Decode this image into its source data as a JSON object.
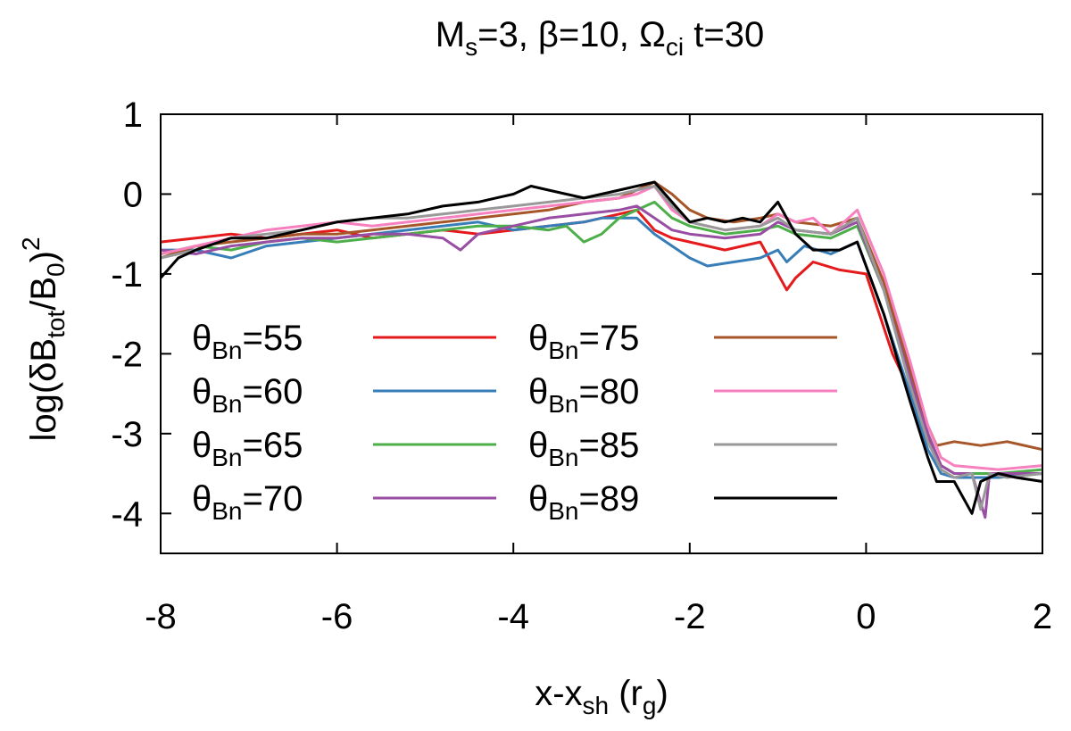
{
  "chart_data": {
    "type": "line",
    "title": {
      "pre1": "M",
      "sub1": "s",
      "post1": "=3,  β=10, Ω",
      "sub2": "ci",
      "post2": " t=30"
    },
    "xlabel": {
      "pre": "x-x",
      "sub1": "sh",
      "mid": " (r",
      "sub2": "g",
      "post": ")"
    },
    "ylabel": {
      "pre": "log(δB",
      "sub1": "tot",
      "mid": "/B",
      "sub2": "0",
      "post": ")",
      "sup": "2"
    },
    "xlim": [
      -8,
      2
    ],
    "ylim": [
      -4.5,
      1
    ],
    "xticks": [
      "-8",
      "-6",
      "-4",
      "-2",
      "0",
      "2"
    ],
    "yticks": [
      "1",
      "0",
      "-1",
      "-2",
      "-3",
      "-4"
    ],
    "grid": false,
    "legend_placement": "lower-left, two columns",
    "series": [
      {
        "label": {
          "pre": "θ",
          "sub": "Bn",
          "post": "=55"
        },
        "color": "#e41a1c",
        "points": [
          [
            -8,
            -0.6
          ],
          [
            -7.6,
            -0.55
          ],
          [
            -7.2,
            -0.5
          ],
          [
            -6.8,
            -0.55
          ],
          [
            -6.4,
            -0.5
          ],
          [
            -6,
            -0.45
          ],
          [
            -5.6,
            -0.55
          ],
          [
            -5.2,
            -0.5
          ],
          [
            -4.8,
            -0.45
          ],
          [
            -4.4,
            -0.5
          ],
          [
            -4,
            -0.45
          ],
          [
            -3.6,
            -0.4
          ],
          [
            -3.2,
            -0.35
          ],
          [
            -3,
            -0.3
          ],
          [
            -2.8,
            -0.25
          ],
          [
            -2.6,
            -0.2
          ],
          [
            -2.4,
            -0.45
          ],
          [
            -2.2,
            -0.55
          ],
          [
            -2,
            -0.6
          ],
          [
            -1.6,
            -0.7
          ],
          [
            -1.2,
            -0.6
          ],
          [
            -1,
            -1.0
          ],
          [
            -0.9,
            -1.2
          ],
          [
            -0.8,
            -1.05
          ],
          [
            -0.6,
            -0.85
          ],
          [
            -0.3,
            -0.95
          ],
          [
            0,
            -1.0
          ],
          [
            0.3,
            -2.0
          ],
          [
            0.6,
            -2.7
          ],
          [
            0.75,
            -3.2
          ],
          [
            0.85,
            -3.4
          ],
          [
            1.0,
            -3.5
          ],
          [
            1.5,
            -3.5
          ],
          [
            2,
            -3.5
          ]
        ]
      },
      {
        "label": {
          "pre": "θ",
          "sub": "Bn",
          "post": "=60"
        },
        "color": "#377eb8",
        "points": [
          [
            -8,
            -0.7
          ],
          [
            -7.6,
            -0.7
          ],
          [
            -7.2,
            -0.8
          ],
          [
            -6.8,
            -0.65
          ],
          [
            -6.4,
            -0.6
          ],
          [
            -6,
            -0.55
          ],
          [
            -5.6,
            -0.5
          ],
          [
            -5.2,
            -0.45
          ],
          [
            -4.8,
            -0.4
          ],
          [
            -4.4,
            -0.35
          ],
          [
            -4,
            -0.45
          ],
          [
            -3.6,
            -0.4
          ],
          [
            -3.2,
            -0.35
          ],
          [
            -3,
            -0.3
          ],
          [
            -2.6,
            -0.3
          ],
          [
            -2.4,
            -0.5
          ],
          [
            -2.2,
            -0.65
          ],
          [
            -2,
            -0.8
          ],
          [
            -1.8,
            -0.9
          ],
          [
            -1.5,
            -0.85
          ],
          [
            -1.2,
            -0.8
          ],
          [
            -1,
            -0.7
          ],
          [
            -0.9,
            -0.85
          ],
          [
            -0.7,
            -0.65
          ],
          [
            -0.4,
            -0.75
          ],
          [
            -0.1,
            -0.6
          ],
          [
            0.2,
            -1.5
          ],
          [
            0.5,
            -2.5
          ],
          [
            0.7,
            -3.2
          ],
          [
            0.85,
            -3.5
          ],
          [
            1.0,
            -3.55
          ],
          [
            1.5,
            -3.55
          ],
          [
            2,
            -3.5
          ]
        ]
      },
      {
        "label": {
          "pre": "θ",
          "sub": "Bn",
          "post": "=65"
        },
        "color": "#4daf4a",
        "points": [
          [
            -8,
            -0.75
          ],
          [
            -7.6,
            -0.65
          ],
          [
            -7.2,
            -0.7
          ],
          [
            -6.8,
            -0.6
          ],
          [
            -6.4,
            -0.55
          ],
          [
            -6,
            -0.6
          ],
          [
            -5.6,
            -0.55
          ],
          [
            -5.2,
            -0.5
          ],
          [
            -4.8,
            -0.45
          ],
          [
            -4.4,
            -0.4
          ],
          [
            -4,
            -0.4
          ],
          [
            -3.6,
            -0.45
          ],
          [
            -3.4,
            -0.4
          ],
          [
            -3.2,
            -0.6
          ],
          [
            -3,
            -0.5
          ],
          [
            -2.8,
            -0.3
          ],
          [
            -2.6,
            -0.2
          ],
          [
            -2.4,
            -0.1
          ],
          [
            -2.2,
            -0.3
          ],
          [
            -2,
            -0.4
          ],
          [
            -1.6,
            -0.5
          ],
          [
            -1.2,
            -0.45
          ],
          [
            -1,
            -0.4
          ],
          [
            -0.8,
            -0.5
          ],
          [
            -0.4,
            -0.55
          ],
          [
            -0.1,
            -0.4
          ],
          [
            0.2,
            -1.2
          ],
          [
            0.5,
            -2.3
          ],
          [
            0.7,
            -3.0
          ],
          [
            0.85,
            -3.4
          ],
          [
            1.0,
            -3.5
          ],
          [
            1.5,
            -3.5
          ],
          [
            2,
            -3.45
          ]
        ]
      },
      {
        "label": {
          "pre": "θ",
          "sub": "Bn",
          "post": "=70"
        },
        "color": "#984ea3",
        "points": [
          [
            -8,
            -0.7
          ],
          [
            -7.6,
            -0.75
          ],
          [
            -7.2,
            -0.65
          ],
          [
            -6.8,
            -0.6
          ],
          [
            -6.4,
            -0.55
          ],
          [
            -6,
            -0.55
          ],
          [
            -5.6,
            -0.5
          ],
          [
            -5.2,
            -0.5
          ],
          [
            -4.8,
            -0.55
          ],
          [
            -4.6,
            -0.7
          ],
          [
            -4.4,
            -0.5
          ],
          [
            -4,
            -0.4
          ],
          [
            -3.6,
            -0.3
          ],
          [
            -3.2,
            -0.25
          ],
          [
            -2.8,
            -0.2
          ],
          [
            -2.6,
            -0.15
          ],
          [
            -2.4,
            -0.3
          ],
          [
            -2.2,
            -0.45
          ],
          [
            -2,
            -0.5
          ],
          [
            -1.6,
            -0.55
          ],
          [
            -1.2,
            -0.5
          ],
          [
            -1,
            -0.35
          ],
          [
            -0.8,
            -0.45
          ],
          [
            -0.4,
            -0.5
          ],
          [
            -0.1,
            -0.35
          ],
          [
            0.2,
            -1.2
          ],
          [
            0.5,
            -2.3
          ],
          [
            0.7,
            -3.0
          ],
          [
            0.85,
            -3.4
          ],
          [
            1.0,
            -3.5
          ],
          [
            1.2,
            -3.5
          ],
          [
            1.35,
            -4.05
          ],
          [
            1.4,
            -3.5
          ],
          [
            1.6,
            -3.5
          ],
          [
            2,
            -3.5
          ]
        ]
      },
      {
        "label": {
          "pre": "θ",
          "sub": "Bn",
          "post": "=75"
        },
        "color": "#a65628",
        "points": [
          [
            -8,
            -0.8
          ],
          [
            -7.6,
            -0.65
          ],
          [
            -7.2,
            -0.6
          ],
          [
            -6.8,
            -0.55
          ],
          [
            -6.4,
            -0.5
          ],
          [
            -6,
            -0.5
          ],
          [
            -5.6,
            -0.45
          ],
          [
            -5.2,
            -0.4
          ],
          [
            -4.8,
            -0.35
          ],
          [
            -4.4,
            -0.3
          ],
          [
            -4,
            -0.25
          ],
          [
            -3.6,
            -0.2
          ],
          [
            -3.2,
            -0.1
          ],
          [
            -2.8,
            -0.05
          ],
          [
            -2.6,
            0.05
          ],
          [
            -2.4,
            0.15
          ],
          [
            -2.2,
            0.0
          ],
          [
            -2,
            -0.2
          ],
          [
            -1.8,
            -0.3
          ],
          [
            -1.5,
            -0.35
          ],
          [
            -1.2,
            -0.3
          ],
          [
            -1,
            -0.25
          ],
          [
            -0.8,
            -0.35
          ],
          [
            -0.4,
            -0.4
          ],
          [
            -0.1,
            -0.3
          ],
          [
            0.2,
            -1.1
          ],
          [
            0.5,
            -2.2
          ],
          [
            0.7,
            -2.9
          ],
          [
            0.8,
            -3.15
          ],
          [
            1.0,
            -3.1
          ],
          [
            1.3,
            -3.15
          ],
          [
            1.6,
            -3.1
          ],
          [
            2,
            -3.2
          ]
        ]
      },
      {
        "label": {
          "pre": "θ",
          "sub": "Bn",
          "post": "=80"
        },
        "color": "#f781bf",
        "points": [
          [
            -8,
            -0.75
          ],
          [
            -7.6,
            -0.65
          ],
          [
            -7.2,
            -0.55
          ],
          [
            -6.8,
            -0.45
          ],
          [
            -6.4,
            -0.4
          ],
          [
            -6,
            -0.35
          ],
          [
            -5.6,
            -0.4
          ],
          [
            -5.2,
            -0.35
          ],
          [
            -4.8,
            -0.3
          ],
          [
            -4.4,
            -0.25
          ],
          [
            -4,
            -0.2
          ],
          [
            -3.6,
            -0.15
          ],
          [
            -3.2,
            -0.1
          ],
          [
            -2.8,
            -0.05
          ],
          [
            -2.6,
            0.0
          ],
          [
            -2.4,
            0.1
          ],
          [
            -2.2,
            -0.2
          ],
          [
            -2,
            -0.35
          ],
          [
            -1.6,
            -0.45
          ],
          [
            -1.2,
            -0.4
          ],
          [
            -1,
            -0.25
          ],
          [
            -0.8,
            -0.35
          ],
          [
            -0.6,
            -0.3
          ],
          [
            -0.4,
            -0.5
          ],
          [
            -0.1,
            -0.2
          ],
          [
            0.2,
            -1.0
          ],
          [
            0.5,
            -2.1
          ],
          [
            0.7,
            -2.9
          ],
          [
            0.85,
            -3.3
          ],
          [
            1.0,
            -3.4
          ],
          [
            1.5,
            -3.45
          ],
          [
            2,
            -3.4
          ]
        ]
      },
      {
        "label": {
          "pre": "θ",
          "sub": "Bn",
          "post": "=85"
        },
        "color": "#999999",
        "points": [
          [
            -8,
            -0.8
          ],
          [
            -7.6,
            -0.7
          ],
          [
            -7.2,
            -0.55
          ],
          [
            -6.8,
            -0.5
          ],
          [
            -6.4,
            -0.45
          ],
          [
            -6,
            -0.35
          ],
          [
            -5.6,
            -0.3
          ],
          [
            -5.2,
            -0.3
          ],
          [
            -4.8,
            -0.25
          ],
          [
            -4.4,
            -0.2
          ],
          [
            -4,
            -0.15
          ],
          [
            -3.6,
            -0.1
          ],
          [
            -3.2,
            -0.05
          ],
          [
            -2.8,
            0.0
          ],
          [
            -2.6,
            0.05
          ],
          [
            -2.4,
            0.1
          ],
          [
            -2.2,
            -0.15
          ],
          [
            -2,
            -0.35
          ],
          [
            -1.6,
            -0.45
          ],
          [
            -1.2,
            -0.4
          ],
          [
            -1,
            -0.3
          ],
          [
            -0.8,
            -0.45
          ],
          [
            -0.4,
            -0.5
          ],
          [
            -0.1,
            -0.3
          ],
          [
            0.2,
            -1.2
          ],
          [
            0.5,
            -2.4
          ],
          [
            0.7,
            -3.1
          ],
          [
            0.85,
            -3.45
          ],
          [
            1.0,
            -3.55
          ],
          [
            1.2,
            -3.5
          ],
          [
            1.3,
            -3.95
          ],
          [
            1.4,
            -3.5
          ],
          [
            1.6,
            -3.55
          ],
          [
            2,
            -3.5
          ]
        ]
      },
      {
        "label": {
          "pre": "θ",
          "sub": "Bn",
          "post": "=89"
        },
        "color": "#000000",
        "points": [
          [
            -8,
            -1.05
          ],
          [
            -7.8,
            -0.8
          ],
          [
            -7.6,
            -0.7
          ],
          [
            -7.2,
            -0.55
          ],
          [
            -6.8,
            -0.55
          ],
          [
            -6.4,
            -0.45
          ],
          [
            -6,
            -0.35
          ],
          [
            -5.6,
            -0.3
          ],
          [
            -5.2,
            -0.25
          ],
          [
            -4.8,
            -0.15
          ],
          [
            -4.4,
            -0.1
          ],
          [
            -4.2,
            -0.05
          ],
          [
            -4,
            0.0
          ],
          [
            -3.8,
            0.1
          ],
          [
            -3.6,
            0.05
          ],
          [
            -3.2,
            -0.05
          ],
          [
            -2.8,
            0.05
          ],
          [
            -2.6,
            0.1
          ],
          [
            -2.4,
            0.15
          ],
          [
            -2.2,
            -0.1
          ],
          [
            -2,
            -0.35
          ],
          [
            -1.8,
            -0.3
          ],
          [
            -1.6,
            -0.35
          ],
          [
            -1.4,
            -0.3
          ],
          [
            -1.2,
            -0.35
          ],
          [
            -1,
            -0.1
          ],
          [
            -0.9,
            -0.3
          ],
          [
            -0.8,
            -0.5
          ],
          [
            -0.6,
            -0.7
          ],
          [
            -0.3,
            -0.7
          ],
          [
            -0.1,
            -0.6
          ],
          [
            0.2,
            -1.5
          ],
          [
            0.5,
            -2.6
          ],
          [
            0.7,
            -3.3
          ],
          [
            0.8,
            -3.6
          ],
          [
            1.0,
            -3.6
          ],
          [
            1.2,
            -4.0
          ],
          [
            1.3,
            -3.6
          ],
          [
            1.5,
            -3.5
          ],
          [
            1.7,
            -3.55
          ],
          [
            2,
            -3.6
          ]
        ]
      }
    ]
  }
}
